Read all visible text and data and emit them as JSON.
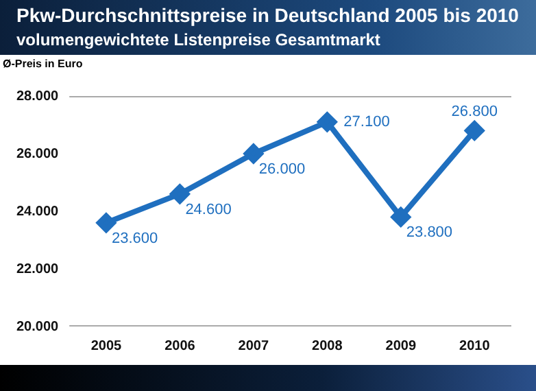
{
  "chart_data": {
    "type": "line",
    "title": "Pkw-Durchschnittspreise in Deutschland 2005 bis 2010",
    "subtitle": "volumengewichtete Listenpreise Gesamtmarkt",
    "ylabel": "Ø-Preis in Euro",
    "categories": [
      "2005",
      "2006",
      "2007",
      "2008",
      "2009",
      "2010"
    ],
    "values": [
      23600,
      24600,
      26000,
      27100,
      23800,
      26800
    ],
    "value_labels": [
      "23.600",
      "24.600",
      "26.000",
      "27.100",
      "23.800",
      "26.800"
    ],
    "color": "#1f6fbf",
    "marker": "diamond",
    "line_style": "solid",
    "grid": false,
    "legend": false,
    "ylim": [
      20000,
      28000
    ],
    "yticks": [
      {
        "value": 20000,
        "label": "20.000"
      },
      {
        "value": 22000,
        "label": "22.000"
      },
      {
        "value": 24000,
        "label": "24.000"
      },
      {
        "value": 26000,
        "label": "26.000"
      },
      {
        "value": 28000,
        "label": "28.000"
      }
    ]
  }
}
